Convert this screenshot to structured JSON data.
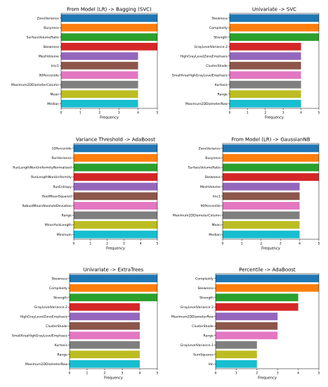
{
  "chart_data": [
    {
      "type": "bar",
      "orientation": "horizontal",
      "title": "From Model (LR) -> Bagging (SVC)",
      "xlabel": "Frequency",
      "ylabel": "",
      "xlim": [
        0,
        5
      ],
      "xticks": [
        0,
        1,
        2,
        3,
        4,
        5
      ],
      "categories": [
        "ZoneVariance",
        "Busyness",
        "SurfaceVolumeRatio",
        "Skewness",
        "MeshVolume",
        "Imc1",
        "90Percentile",
        "Maximum2DDiameterColumn",
        "Mean",
        "Median"
      ],
      "values": [
        5,
        5,
        5,
        5,
        4,
        4,
        4,
        4,
        4,
        4
      ]
    },
    {
      "type": "bar",
      "orientation": "horizontal",
      "title": "Univariate -> SVC",
      "xlabel": "Frequency",
      "ylabel": "",
      "xlim": [
        0,
        5
      ],
      "xticks": [
        0,
        1,
        2,
        3,
        4,
        5
      ],
      "categories": [
        "Skewness",
        "Complexity",
        "Strength",
        "GrayLevelVariance.2",
        "HighGrayLevelZoneEmphasis",
        "ClusterShade",
        "SmallAreaHighGrayLevelEmphasis",
        "Kurtosis",
        "Range",
        "Maximum2DDiameterRow"
      ],
      "values": [
        5,
        5,
        5,
        4,
        4,
        4,
        4,
        4,
        4,
        4
      ]
    },
    {
      "type": "bar",
      "orientation": "horizontal",
      "title": "Variance Threshold -> AdaBoost",
      "xlabel": "Frequency",
      "ylabel": "",
      "xlim": [
        0,
        5
      ],
      "xticks": [
        0,
        1,
        2,
        3,
        4,
        5
      ],
      "categories": [
        "10Percentile",
        "RunVariance",
        "RunLengthNonUniformityNormalized",
        "RunLengthNonUniformity",
        "RunEntropy",
        "RootMeanSquared",
        "RobustMeanAbsoluteDeviation",
        "Range",
        "MinorAxisLength",
        "Minimum"
      ],
      "values": [
        5,
        5,
        5,
        5,
        5,
        5,
        5,
        5,
        5,
        5
      ]
    },
    {
      "type": "bar",
      "orientation": "horizontal",
      "title": "From Model (LR) -> GaussianNB",
      "xlabel": "Frequency",
      "ylabel": "",
      "xlim": [
        0,
        5
      ],
      "xticks": [
        0,
        1,
        2,
        3,
        4,
        5
      ],
      "categories": [
        "ZoneVariance",
        "Busyness",
        "SurfaceVolumeRatio",
        "Skewness",
        "MeshVolume",
        "Imc1",
        "90Percentile",
        "Maximum2DDiameterColumn",
        "Mean",
        "Median"
      ],
      "values": [
        5,
        5,
        5,
        5,
        4,
        4,
        4,
        4,
        4,
        4
      ]
    },
    {
      "type": "bar",
      "orientation": "horizontal",
      "title": "Univariate -> ExtraTrees",
      "xlabel": "Frequency",
      "ylabel": "",
      "xlim": [
        0,
        5
      ],
      "xticks": [
        0,
        1,
        2,
        3,
        4,
        5
      ],
      "categories": [
        "Skewness",
        "Complexity",
        "Strength",
        "GrayLevelVariance.2",
        "HighGrayLevelZoneEmphasis",
        "ClusterShade",
        "SmallAreaHighGrayLevelEmphasis",
        "Kurtosis",
        "Range",
        "Maximum2DDiameterRow"
      ],
      "values": [
        5,
        5,
        5,
        4,
        4,
        4,
        4,
        4,
        4,
        4
      ]
    },
    {
      "type": "bar",
      "orientation": "horizontal",
      "title": "Percentile -> AdaBoost",
      "xlabel": "Frequency",
      "ylabel": "",
      "xlim": [
        0,
        5
      ],
      "xticks": [
        0,
        1,
        2,
        3,
        4,
        5
      ],
      "categories": [
        "Complexity",
        "Skewness",
        "Strength",
        "GrayLevelVariance.2",
        "Maximum2DDiameterRow",
        "ClusterShade",
        "Range",
        "GrayLevelVariance.1",
        "SumSquares",
        "Idn"
      ],
      "values": [
        5,
        5,
        4,
        4,
        3,
        3,
        3,
        2,
        2,
        2
      ]
    }
  ],
  "colors": [
    "#1f77b4",
    "#ff7f0e",
    "#2ca02c",
    "#d62728",
    "#9467bd",
    "#8c564b",
    "#e377c2",
    "#7f7f7f",
    "#bcbd22",
    "#17becf"
  ]
}
